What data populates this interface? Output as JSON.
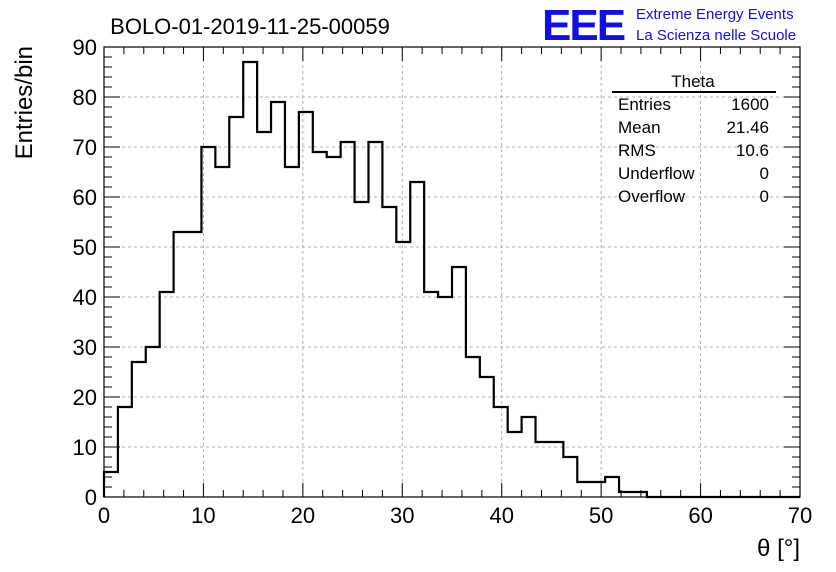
{
  "header": {
    "title": "BOLO-01-2019-11-25-00059",
    "logo_text": "EEE",
    "logo_line1": "Extreme Energy Events",
    "logo_line2": "La Scienza nelle Scuole"
  },
  "colors": {
    "logo": "#1010e0",
    "line": "#000000",
    "grid": "#b0b0b0"
  },
  "stats": {
    "name": "Theta",
    "rows": [
      {
        "label": "Entries",
        "value": "1600"
      },
      {
        "label": "Mean",
        "value": "21.46"
      },
      {
        "label": "RMS",
        "value": "10.6"
      },
      {
        "label": "Underflow",
        "value": "0"
      },
      {
        "label": "Overflow",
        "value": "0"
      }
    ]
  },
  "chart_data": {
    "type": "bar",
    "histogram_style": "step",
    "xlabel": "θ [°]",
    "ylabel": "Entries/bin",
    "xlim": [
      0,
      70
    ],
    "ylim": [
      0,
      90
    ],
    "grid": true,
    "bin_width": 1.4,
    "bin_edges_start": 0,
    "values": [
      5,
      18,
      27,
      30,
      41,
      53,
      53,
      70,
      66,
      76,
      87,
      73,
      79,
      66,
      77,
      69,
      68,
      71,
      59,
      71,
      58,
      51,
      63,
      41,
      40,
      46,
      28,
      24,
      18,
      13,
      16,
      11,
      11,
      8,
      3,
      3,
      4,
      1,
      1,
      0,
      0,
      0,
      0,
      0,
      0,
      0,
      0,
      0,
      0,
      0
    ],
    "x_ticks": [
      "0",
      "10",
      "20",
      "30",
      "40",
      "50",
      "60",
      "70"
    ],
    "y_ticks": [
      "0",
      "10",
      "20",
      "30",
      "40",
      "50",
      "60",
      "70",
      "80",
      "90"
    ]
  }
}
